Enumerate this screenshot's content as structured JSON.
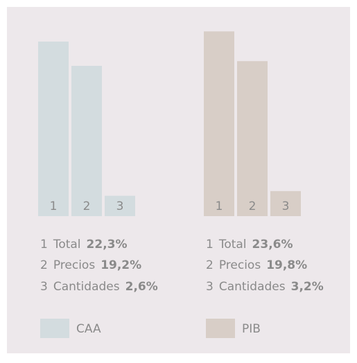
{
  "chart_data": {
    "type": "bar",
    "categories": [
      "1",
      "2",
      "3"
    ],
    "category_names": [
      "Total",
      "Precios",
      "Cantidades"
    ],
    "series": [
      {
        "name": "CAA",
        "color": "#d3dcdf",
        "values": [
          22.3,
          19.2,
          2.6
        ],
        "value_labels": [
          "22,3%",
          "19,2%",
          "2,6%"
        ]
      },
      {
        "name": "PIB",
        "color": "#d8cec7",
        "values": [
          23.6,
          19.8,
          3.2
        ],
        "value_labels": [
          "23,6%",
          "19,8%",
          "3,2%"
        ]
      }
    ]
  }
}
